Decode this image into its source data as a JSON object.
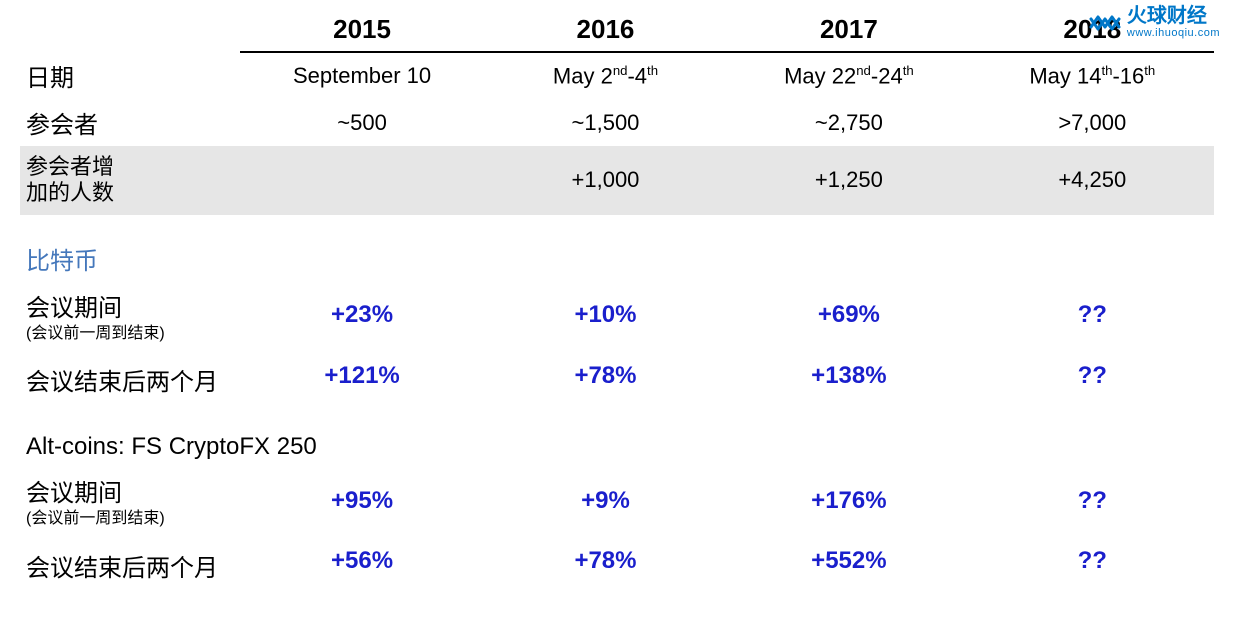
{
  "watermark": {
    "name_cn": "火球财经",
    "url": "www.ihuoqiu.com",
    "icon_color": "#0077c8"
  },
  "header": {
    "years": [
      "2015",
      "2016",
      "2017",
      "2018"
    ]
  },
  "rows": {
    "date_label": "日期",
    "dates": [
      "September 10",
      "May 2<sup>nd</sup>-4<sup>th</sup>",
      "May 22<sup>nd</sup>-24<sup>th</sup>",
      "May 14<sup>th</sup>-16<sup>th</sup>"
    ],
    "attendees_label": "参会者",
    "attendees": [
      "~500",
      "~1,500",
      "~2,750",
      ">7,000"
    ],
    "increase_label": "参会者增<br>加的人数",
    "increase": [
      "",
      "+1,000",
      "+1,250",
      "+4,250"
    ]
  },
  "sections": {
    "bitcoin": {
      "title": "比特币",
      "row1_label": "会议期间",
      "row1_sub": "(会议前一周到结束)",
      "row1_vals": [
        "+23%",
        "+10%",
        "+69%",
        "??"
      ],
      "row2_label": "会议结束后两个月",
      "row2_vals": [
        "+121%",
        "+78%",
        "+138%",
        "??"
      ]
    },
    "altcoins": {
      "title": "Alt-coins: FS CryptoFX 250",
      "row1_label": "会议期间",
      "row1_sub": "(会议前一周到结束)",
      "row1_vals": [
        "+95%",
        "+9%",
        "+176%",
        "??"
      ],
      "row2_label": "会议结束后两个月",
      "row2_vals": [
        "+56%",
        "+78%",
        "+552%",
        "??"
      ]
    }
  },
  "colors": {
    "value_blue": "#1a1fcc",
    "section_blue": "#4477bb",
    "shade": "#e6e6e6",
    "text": "#000000",
    "bg": "#ffffff"
  }
}
